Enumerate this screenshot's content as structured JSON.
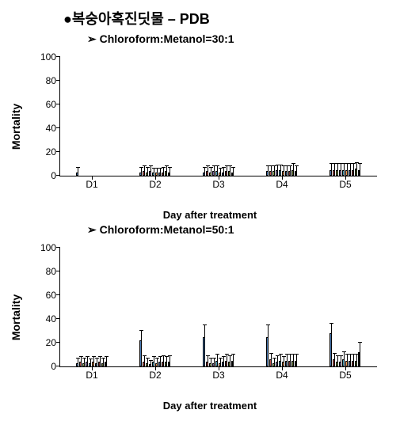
{
  "main_title": "●복숭아혹진딧물 – PDB",
  "charts": [
    {
      "subtitle": "Chloroform:Metanol=30:1",
      "ylabel": "Mortality",
      "xlabel": "Day after treatment",
      "ylim": [
        0,
        100
      ],
      "yticks": [
        0,
        20,
        40,
        60,
        80,
        100
      ],
      "categories": [
        "D1",
        "D2",
        "D3",
        "D4",
        "D5"
      ],
      "series_colors": [
        "#4f81bd",
        "#c0504d",
        "#9bbb59",
        "#8064a2",
        "#4bacc6",
        "#f79646",
        "#2c4d75",
        "#772c2a",
        "#5f7530",
        "#000000"
      ],
      "groups": [
        {
          "values": [
            3,
            0,
            0,
            0,
            0,
            0,
            0,
            0,
            0,
            0
          ],
          "err": [
            4,
            0,
            0,
            0,
            0,
            0,
            0,
            0,
            0,
            0
          ]
        },
        {
          "values": [
            3,
            4,
            3,
            4,
            3,
            3,
            3,
            3,
            4,
            3
          ],
          "err": [
            4,
            4,
            4,
            4,
            3,
            3,
            3,
            4,
            4,
            4
          ]
        },
        {
          "values": [
            3,
            4,
            3,
            4,
            4,
            3,
            3,
            4,
            4,
            3
          ],
          "err": [
            4,
            4,
            4,
            4,
            4,
            3,
            4,
            4,
            4,
            4
          ]
        },
        {
          "values": [
            4,
            4,
            4,
            5,
            5,
            4,
            4,
            4,
            5,
            4
          ],
          "err": [
            4,
            4,
            4,
            4,
            4,
            4,
            4,
            4,
            5,
            4
          ]
        },
        {
          "values": [
            5,
            5,
            5,
            5,
            5,
            5,
            5,
            5,
            6,
            5
          ],
          "err": [
            5,
            5,
            5,
            5,
            5,
            5,
            5,
            5,
            5,
            5
          ]
        }
      ],
      "background_color": "#ffffff",
      "label_fontsize": 14,
      "tick_fontsize": 12
    },
    {
      "subtitle": "Chloroform:Metanol=50:1",
      "ylabel": "Mortality",
      "xlabel": "Day after treatment",
      "ylim": [
        0,
        100
      ],
      "yticks": [
        0,
        20,
        40,
        60,
        80,
        100
      ],
      "categories": [
        "D1",
        "D2",
        "D3",
        "D4",
        "D5"
      ],
      "series_colors": [
        "#4f81bd",
        "#c0504d",
        "#9bbb59",
        "#8064a2",
        "#4bacc6",
        "#f79646",
        "#2c4d75",
        "#772c2a",
        "#5f7530",
        "#000000"
      ],
      "groups": [
        {
          "values": [
            3,
            4,
            3,
            4,
            3,
            4,
            3,
            4,
            3,
            4
          ],
          "err": [
            4,
            4,
            4,
            4,
            3,
            4,
            4,
            4,
            4,
            4
          ]
        },
        {
          "values": [
            22,
            4,
            3,
            2,
            4,
            3,
            4,
            4,
            4,
            4
          ],
          "err": [
            8,
            5,
            4,
            3,
            4,
            4,
            4,
            5,
            4,
            5
          ]
        },
        {
          "values": [
            25,
            4,
            3,
            3,
            5,
            3,
            4,
            5,
            4,
            5
          ],
          "err": [
            10,
            5,
            4,
            4,
            5,
            4,
            4,
            5,
            5,
            5
          ]
        },
        {
          "values": [
            25,
            6,
            3,
            4,
            5,
            4,
            5,
            5,
            5,
            5
          ],
          "err": [
            10,
            5,
            4,
            5,
            5,
            4,
            5,
            5,
            5,
            5
          ]
        },
        {
          "values": [
            28,
            6,
            4,
            4,
            6,
            5,
            5,
            5,
            5,
            12
          ],
          "err": [
            8,
            5,
            5,
            5,
            6,
            5,
            5,
            5,
            5,
            8
          ]
        }
      ],
      "background_color": "#ffffff",
      "label_fontsize": 14,
      "tick_fontsize": 12
    }
  ]
}
